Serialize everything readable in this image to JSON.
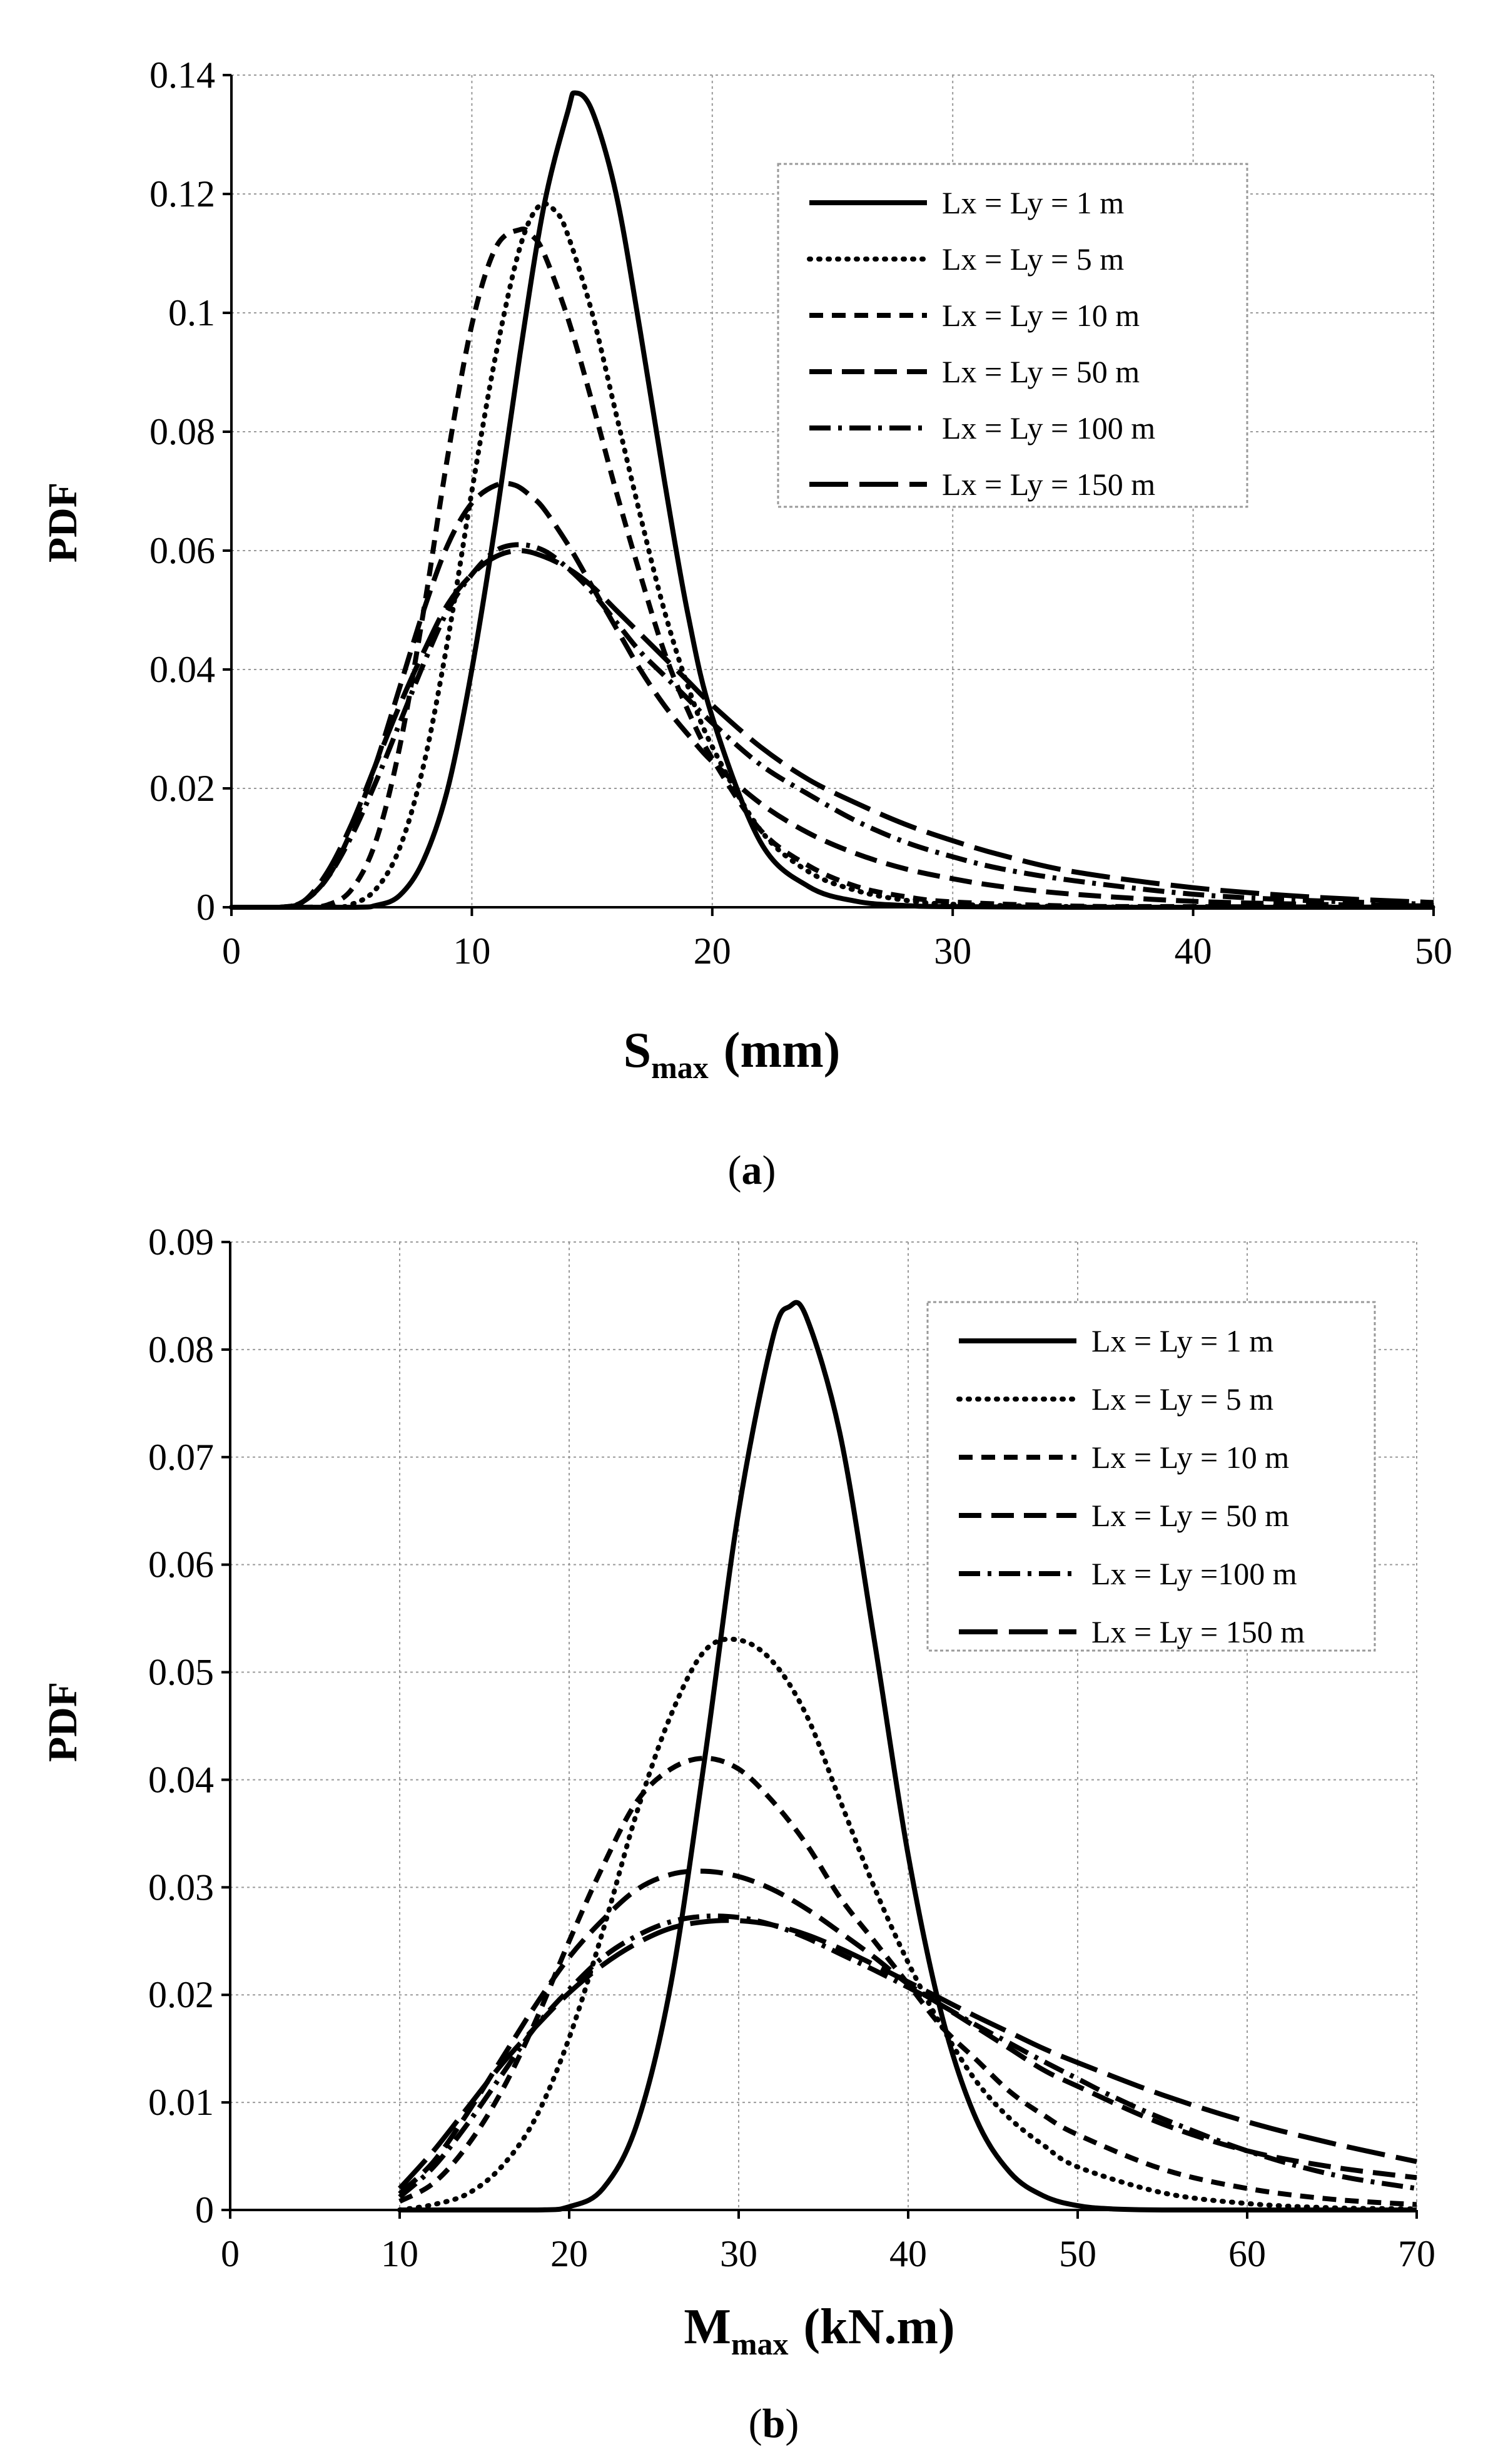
{
  "chart_data": [
    {
      "type": "line",
      "panel_label": "a",
      "ylabel": "PDF",
      "xlabel_main": "S",
      "xlabel_sub": "max",
      "xlabel_unit": "(mm)",
      "xlim": [
        0,
        50
      ],
      "ylim": [
        0,
        0.14
      ],
      "xticks": [
        "0",
        "10",
        "20",
        "30",
        "40",
        "50"
      ],
      "yticks": [
        "0",
        "0.02",
        "0.04",
        "0.06",
        "0.08",
        "0.1",
        "0.12",
        "0.14"
      ],
      "grid": true,
      "legend_position": "top-right",
      "series": [
        {
          "name": "Lx = Ly = 1 m",
          "style": "solid",
          "x": [
            0,
            5,
            6,
            7,
            8,
            9,
            10,
            11,
            12,
            13,
            14,
            14.3,
            15,
            16,
            17,
            18,
            19,
            20,
            22,
            24,
            26,
            28,
            30,
            35,
            40,
            50
          ],
          "y": [
            0,
            0,
            0.0003,
            0.002,
            0.008,
            0.02,
            0.04,
            0.065,
            0.093,
            0.118,
            0.134,
            0.137,
            0.134,
            0.12,
            0.097,
            0.072,
            0.049,
            0.032,
            0.011,
            0.0035,
            0.001,
            0.0003,
            0.0001,
            0,
            0,
            0
          ]
        },
        {
          "name": "Lx = Ly = 5 m",
          "style": "dotted",
          "x": [
            0,
            4,
            5,
            6,
            7,
            8,
            9,
            10,
            11,
            12,
            12.8,
            13.5,
            14,
            15,
            16,
            17,
            18,
            19,
            20,
            22,
            24,
            26,
            28,
            30,
            35,
            40,
            50
          ],
          "y": [
            0,
            0,
            0.0005,
            0.003,
            0.01,
            0.024,
            0.045,
            0.07,
            0.093,
            0.111,
            0.118,
            0.117,
            0.113,
            0.1,
            0.083,
            0.066,
            0.05,
            0.037,
            0.027,
            0.013,
            0.006,
            0.0028,
            0.0012,
            0.0005,
            0.0001,
            0,
            0
          ]
        },
        {
          "name": "Lx = Ly = 10 m",
          "style": "short-dash",
          "x": [
            0,
            3,
            4,
            5,
            6,
            7,
            8,
            9,
            10,
            11,
            12,
            12.5,
            13,
            14,
            15,
            16,
            17,
            18,
            19,
            20,
            22,
            24,
            26,
            28,
            30,
            35,
            40,
            50
          ],
          "y": [
            0,
            0,
            0.0004,
            0.003,
            0.011,
            0.027,
            0.05,
            0.076,
            0.098,
            0.111,
            0.114,
            0.113,
            0.11,
            0.099,
            0.085,
            0.07,
            0.056,
            0.043,
            0.033,
            0.025,
            0.013,
            0.007,
            0.0035,
            0.0018,
            0.0009,
            0.0002,
            0.0001,
            0
          ]
        },
        {
          "name": "Lx = Ly = 50 m",
          "style": "dash",
          "x": [
            0,
            2,
            3,
            4,
            5,
            6,
            7,
            8,
            9,
            10,
            11,
            11.8,
            12.5,
            13,
            14,
            15,
            16,
            17,
            18,
            19,
            20,
            22,
            24,
            26,
            28,
            30,
            32,
            35,
            40,
            45,
            50
          ],
          "y": [
            0,
            0,
            0.001,
            0.005,
            0.013,
            0.024,
            0.037,
            0.05,
            0.061,
            0.068,
            0.071,
            0.071,
            0.069,
            0.067,
            0.061,
            0.054,
            0.047,
            0.04,
            0.034,
            0.029,
            0.0245,
            0.0175,
            0.0125,
            0.009,
            0.0065,
            0.0048,
            0.0035,
            0.0022,
            0.001,
            0.0005,
            0.0002
          ]
        },
        {
          "name": "Lx = Ly = 100 m",
          "style": "dash-dot",
          "x": [
            0,
            2,
            3,
            4,
            5,
            6,
            7,
            8,
            9,
            10,
            11,
            12,
            13,
            14,
            15,
            16,
            17,
            18,
            19,
            20,
            22,
            24,
            26,
            28,
            30,
            32,
            35,
            40,
            45,
            50
          ],
          "y": [
            0,
            0,
            0.001,
            0.005,
            0.012,
            0.021,
            0.031,
            0.041,
            0.05,
            0.056,
            0.06,
            0.061,
            0.06,
            0.057,
            0.053,
            0.048,
            0.043,
            0.039,
            0.035,
            0.031,
            0.024,
            0.019,
            0.0145,
            0.011,
            0.0085,
            0.0065,
            0.0045,
            0.0022,
            0.0011,
            0.0005
          ]
        },
        {
          "name": "Lx = Ly = 150 m",
          "style": "long-dash",
          "x": [
            0,
            2,
            3,
            4,
            5,
            6,
            7,
            8,
            9,
            10,
            11,
            12,
            13,
            14,
            15,
            16,
            17,
            18,
            19,
            20,
            22,
            24,
            26,
            28,
            30,
            32,
            35,
            40,
            45,
            50
          ],
          "y": [
            0,
            0,
            0.001,
            0.006,
            0.014,
            0.024,
            0.034,
            0.043,
            0.051,
            0.056,
            0.059,
            0.06,
            0.059,
            0.057,
            0.054,
            0.05,
            0.046,
            0.042,
            0.038,
            0.034,
            0.027,
            0.0215,
            0.0175,
            0.014,
            0.0112,
            0.0088,
            0.006,
            0.0033,
            0.0017,
            0.0008
          ]
        }
      ]
    },
    {
      "type": "line",
      "panel_label": "b",
      "ylabel": "PDF",
      "xlabel_main": "M",
      "xlabel_sub": "max",
      "xlabel_unit": "(kN.m)",
      "xlim": [
        0,
        70
      ],
      "ylim": [
        0,
        0.09
      ],
      "xticks": [
        "0",
        "10",
        "20",
        "30",
        "40",
        "50",
        "60",
        "70"
      ],
      "yticks": [
        "0",
        "0.01",
        "0.02",
        "0.03",
        "0.04",
        "0.05",
        "0.06",
        "0.07",
        "0.08",
        "0.09"
      ],
      "grid": true,
      "legend_position": "top-right",
      "series": [
        {
          "name": "Lx = Ly = 1 m",
          "style": "solid",
          "x": [
            10,
            18,
            20,
            22,
            24,
            26,
            28,
            30,
            32,
            33,
            34,
            36,
            38,
            40,
            42,
            44,
            46,
            48,
            50,
            52,
            55,
            60,
            70
          ],
          "y": [
            0,
            0,
            0.0003,
            0.002,
            0.008,
            0.021,
            0.042,
            0.065,
            0.081,
            0.084,
            0.083,
            0.072,
            0.053,
            0.033,
            0.018,
            0.0085,
            0.0035,
            0.0013,
            0.0004,
            0.0001,
            0,
            0,
            0
          ]
        },
        {
          "name": "Lx = Ly = 5 m",
          "style": "dotted",
          "x": [
            10,
            12,
            14,
            16,
            18,
            20,
            22,
            24,
            26,
            28,
            30,
            32,
            34,
            36,
            38,
            40,
            42,
            44,
            46,
            48,
            50,
            55,
            60,
            65,
            70
          ],
          "y": [
            0,
            0.0005,
            0.0015,
            0.004,
            0.0085,
            0.016,
            0.026,
            0.037,
            0.046,
            0.052,
            0.053,
            0.051,
            0.046,
            0.038,
            0.03,
            0.023,
            0.017,
            0.012,
            0.0085,
            0.006,
            0.004,
            0.0016,
            0.0006,
            0.0002,
            0.0001
          ]
        },
        {
          "name": "Lx = Ly = 10 m",
          "style": "short-dash",
          "x": [
            10,
            12,
            14,
            16,
            18,
            20,
            22,
            24,
            26,
            28,
            30,
            32,
            34,
            36,
            38,
            40,
            42,
            44,
            46,
            48,
            50,
            55,
            60,
            65,
            70
          ],
          "y": [
            0.0008,
            0.0025,
            0.006,
            0.011,
            0.0175,
            0.025,
            0.032,
            0.038,
            0.041,
            0.042,
            0.041,
            0.038,
            0.034,
            0.029,
            0.025,
            0.021,
            0.017,
            0.014,
            0.011,
            0.0088,
            0.007,
            0.0038,
            0.002,
            0.001,
            0.0005
          ]
        },
        {
          "name": "Lx = Ly = 50 m",
          "style": "dash",
          "x": [
            10,
            12,
            14,
            16,
            18,
            20,
            22,
            24,
            26,
            28,
            30,
            32,
            34,
            36,
            38,
            40,
            42,
            44,
            46,
            48,
            50,
            55,
            60,
            65,
            70
          ],
          "y": [
            0.0015,
            0.0045,
            0.009,
            0.014,
            0.019,
            0.0235,
            0.027,
            0.0298,
            0.0312,
            0.0315,
            0.031,
            0.0298,
            0.028,
            0.0258,
            0.0235,
            0.021,
            0.019,
            0.017,
            0.015,
            0.013,
            0.0115,
            0.008,
            0.0055,
            0.004,
            0.003
          ]
        },
        {
          "name": "Lx = Ly =100 m",
          "style": "dash-dot",
          "x": [
            10,
            12,
            14,
            16,
            18,
            20,
            22,
            24,
            26,
            28,
            30,
            32,
            34,
            36,
            38,
            40,
            42,
            44,
            46,
            48,
            50,
            52,
            55,
            60,
            65,
            70
          ],
          "y": [
            0.0012,
            0.004,
            0.008,
            0.0125,
            0.017,
            0.0205,
            0.0235,
            0.0255,
            0.0268,
            0.0273,
            0.0272,
            0.0265,
            0.0253,
            0.0238,
            0.0223,
            0.0207,
            0.019,
            0.0172,
            0.0155,
            0.0138,
            0.0122,
            0.0106,
            0.0085,
            0.0055,
            0.0033,
            0.002
          ]
        },
        {
          "name": "Lx = Ly = 150 m",
          "style": "long-dash",
          "x": [
            10,
            12,
            14,
            16,
            18,
            20,
            22,
            24,
            26,
            28,
            30,
            32,
            34,
            36,
            38,
            40,
            42,
            44,
            46,
            48,
            50,
            55,
            60,
            65,
            70
          ],
          "y": [
            0.002,
            0.0055,
            0.0095,
            0.0135,
            0.017,
            0.0202,
            0.0228,
            0.0248,
            0.0262,
            0.0268,
            0.0269,
            0.0265,
            0.0256,
            0.0243,
            0.0228,
            0.0212,
            0.0196,
            0.018,
            0.0165,
            0.015,
            0.0137,
            0.0107,
            0.0082,
            0.0062,
            0.0045
          ]
        }
      ]
    }
  ]
}
